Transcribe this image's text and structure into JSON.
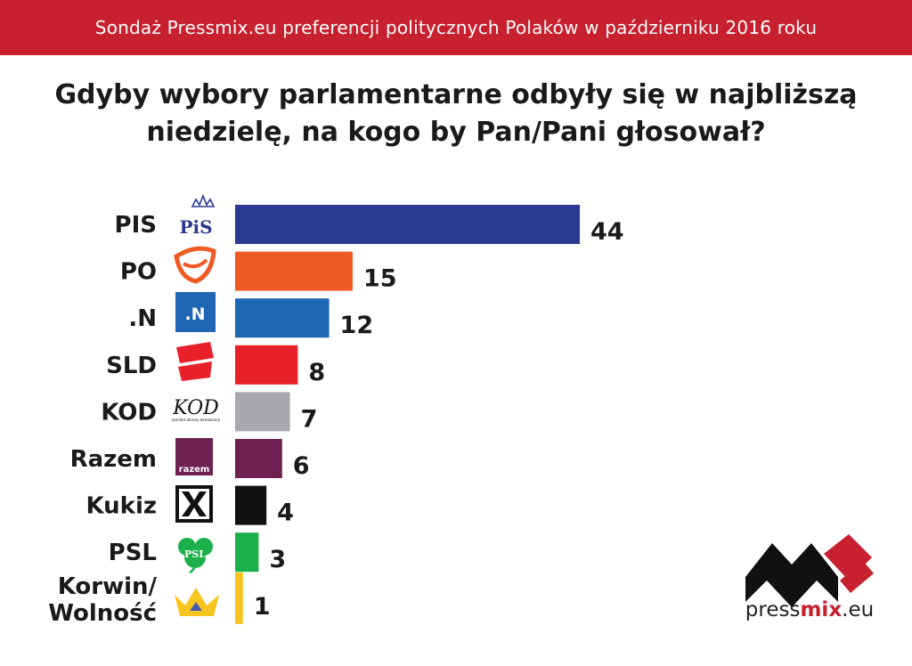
{
  "header": {
    "title": "Sondaż Pressmix.eu preferencji politycznych Polaków w październiku 2016 roku"
  },
  "question": "Gdyby wybory parlamentarne odbyły się w najbliższą niedzielę, na kogo by Pan/Pani głosował?",
  "brand": {
    "prefix": "press",
    "highlight": "mix",
    "suffix": ".eu",
    "color": "#c7202f"
  },
  "logos": {
    "pis": "PiS",
    "n": ".N",
    "kod": "KOD",
    "kod_sub": "komitet obrony demokracji",
    "razem": "razem",
    "psl": "PSL"
  },
  "chart_data": {
    "type": "bar",
    "orientation": "horizontal",
    "categories": [
      "PIS",
      "PO",
      ".N",
      "SLD",
      "KOD",
      "Razem",
      "Kukiz",
      "PSL",
      "Korwin/ Wolność"
    ],
    "values": [
      44,
      15,
      12,
      8,
      7,
      6,
      4,
      3,
      1
    ],
    "colors": [
      "#2b3990",
      "#ee5a24",
      "#1e66b4",
      "#e8202a",
      "#a7a9ac",
      "#6d2151",
      "#111111",
      "#1bb04a",
      "#f7c51e"
    ],
    "title": "Gdyby wybory parlamentarne odbyły się w najbliższą niedzielę, na kogo by Pan/Pani głosował?",
    "xlim": [
      0,
      44
    ],
    "grid": false,
    "legend": "none"
  }
}
